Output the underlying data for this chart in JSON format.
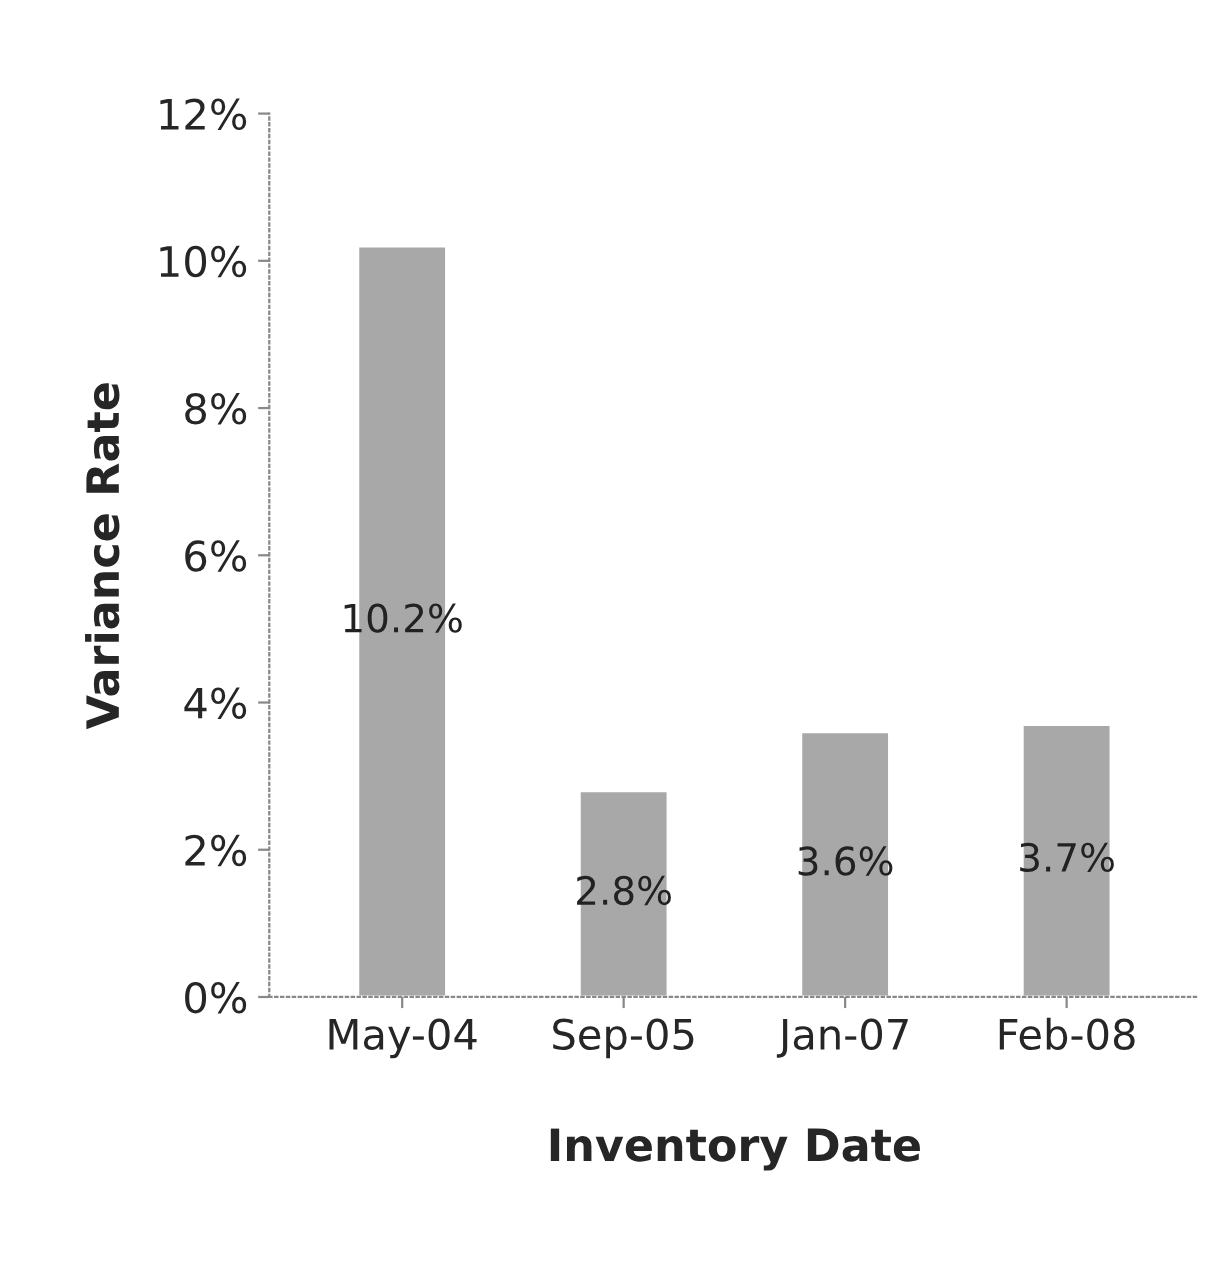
{
  "chart_data": {
    "type": "bar",
    "xlabel": "Inventory Date",
    "ylabel": "Variance Rate",
    "categories": [
      "May-04",
      "Sep-05",
      "Jan-07",
      "Feb-08"
    ],
    "values": [
      10.2,
      2.8,
      3.6,
      3.7
    ],
    "value_labels": [
      "10.2%",
      "2.8%",
      "3.6%",
      "3.7%"
    ],
    "color": "#a8a8a8",
    "ylim": [
      0,
      12
    ],
    "yticks": [
      {
        "value": 0,
        "label": "0%"
      },
      {
        "value": 2,
        "label": "2%"
      },
      {
        "value": 4,
        "label": "4%"
      },
      {
        "value": 6,
        "label": "6%"
      },
      {
        "value": 8,
        "label": "8%"
      },
      {
        "value": 10,
        "label": "10%"
      },
      {
        "value": 12,
        "label": "12%"
      }
    ],
    "grid": false,
    "legend": false
  }
}
